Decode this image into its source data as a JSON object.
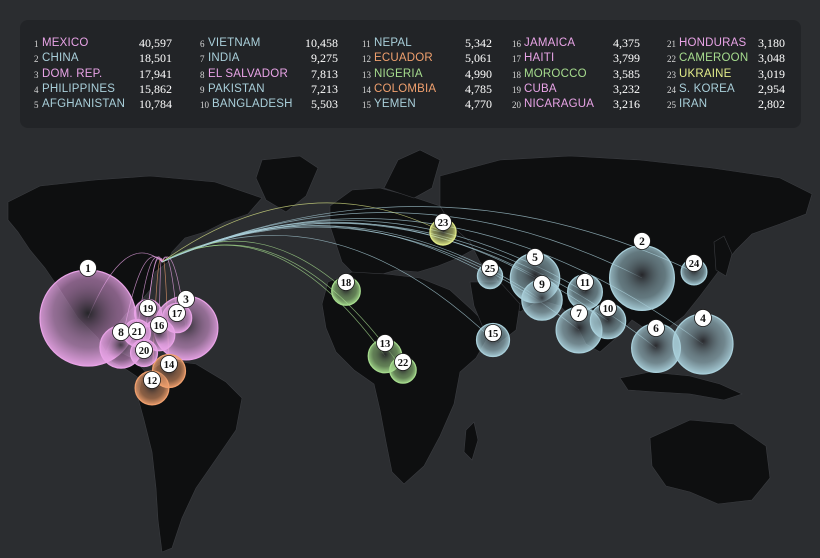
{
  "colors": {
    "background": "#2b2d30",
    "panel": "#222427",
    "land": "#0e0f10",
    "pink": "#e8a3e6",
    "blue": "#a9cfda",
    "orange": "#f0a06e",
    "green": "#a6dc8e",
    "yellow": "#e2ec8a"
  },
  "chart_data": {
    "type": "bubble-map",
    "origin": "United States",
    "countries": [
      {
        "rank": "1",
        "name": "MEXICO",
        "value": 40597,
        "value_label": "40,597",
        "color": "pink"
      },
      {
        "rank": "2",
        "name": "CHINA",
        "value": 18501,
        "value_label": "18,501",
        "color": "blue"
      },
      {
        "rank": "3",
        "name": "DOM. REP.",
        "value": 17941,
        "value_label": "17,941",
        "color": "pink"
      },
      {
        "rank": "4",
        "name": "PHILIPPINES",
        "value": 15862,
        "value_label": "15,862",
        "color": "blue"
      },
      {
        "rank": "5",
        "name": "AFGHANISTAN",
        "value": 10784,
        "value_label": "10,784",
        "color": "blue"
      },
      {
        "rank": "6",
        "name": "VIETNAM",
        "value": 10458,
        "value_label": "10,458",
        "color": "blue"
      },
      {
        "rank": "7",
        "name": "INDIA",
        "value": 9275,
        "value_label": "9,275",
        "color": "blue"
      },
      {
        "rank": "8",
        "name": "EL SALVADOR",
        "value": 7813,
        "value_label": "7,813",
        "color": "pink"
      },
      {
        "rank": "9",
        "name": "PAKISTAN",
        "value": 7213,
        "value_label": "7,213",
        "color": "blue"
      },
      {
        "rank": "10",
        "name": "BANGLADESH",
        "value": 5503,
        "value_label": "5,503",
        "color": "blue"
      },
      {
        "rank": "11",
        "name": "NEPAL",
        "value": 5342,
        "value_label": "5,342",
        "color": "blue"
      },
      {
        "rank": "12",
        "name": "ECUADOR",
        "value": 5061,
        "value_label": "5,061",
        "color": "orange"
      },
      {
        "rank": "13",
        "name": "NIGERIA",
        "value": 4990,
        "value_label": "4,990",
        "color": "green"
      },
      {
        "rank": "14",
        "name": "COLOMBIA",
        "value": 4785,
        "value_label": "4,785",
        "color": "orange"
      },
      {
        "rank": "15",
        "name": "YEMEN",
        "value": 4770,
        "value_label": "4,770",
        "color": "blue"
      },
      {
        "rank": "16",
        "name": "JAMAICA",
        "value": 4375,
        "value_label": "4,375",
        "color": "pink"
      },
      {
        "rank": "17",
        "name": "HAITI",
        "value": 3799,
        "value_label": "3,799",
        "color": "pink"
      },
      {
        "rank": "18",
        "name": "MOROCCO",
        "value": 3585,
        "value_label": "3,585",
        "color": "green"
      },
      {
        "rank": "19",
        "name": "CUBA",
        "value": 3232,
        "value_label": "3,232",
        "color": "pink"
      },
      {
        "rank": "20",
        "name": "NICARAGUA",
        "value": 3216,
        "value_label": "3,216",
        "color": "pink"
      },
      {
        "rank": "21",
        "name": "HONDURAS",
        "value": 3180,
        "value_label": "3,180",
        "color": "pink"
      },
      {
        "rank": "22",
        "name": "CAMEROON",
        "value": 3048,
        "value_label": "3,048",
        "color": "green"
      },
      {
        "rank": "23",
        "name": "UKRAINE",
        "value": 3019,
        "value_label": "3,019",
        "color": "yellow"
      },
      {
        "rank": "24",
        "name": "S. KOREA",
        "value": 2954,
        "value_label": "2,954",
        "color": "blue"
      },
      {
        "rank": "25",
        "name": "IRAN",
        "value": 2802,
        "value_label": "2,802",
        "color": "blue"
      }
    ]
  }
}
